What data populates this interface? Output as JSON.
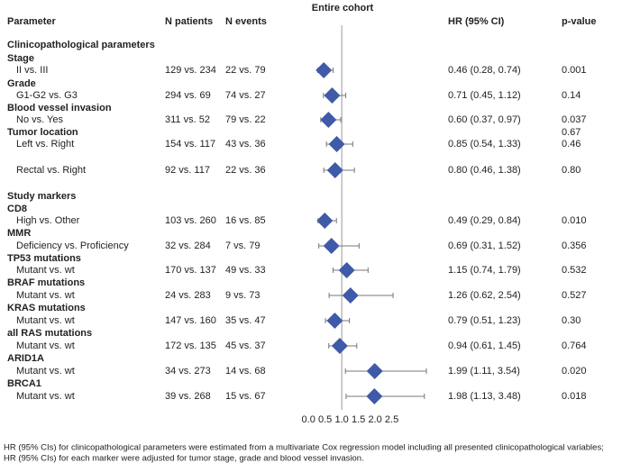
{
  "chart_data": {
    "type": "forest",
    "title": "Entire cohort",
    "columns": {
      "parameter": "Parameter",
      "n_patients": "N patients",
      "n_events": "N events",
      "hr": "HR (95% CI)",
      "p": "p-value"
    },
    "color": "#3f5aa8",
    "whisker_color": "#777777",
    "reference": 1,
    "xlim": [
      -0.6,
      4.0
    ],
    "xticks": [
      {
        "value": 0,
        "label": "0.0"
      },
      0.5,
      {
        "value": 1,
        "label": "1.0"
      },
      1.5,
      {
        "value": 2,
        "label": "2.0"
      },
      2.5
    ],
    "rows": [
      {
        "level": "section",
        "label": "Clinicopathological parameters"
      },
      {
        "level": "group",
        "label": "Stage"
      },
      {
        "level": "item",
        "label": "II vs. III",
        "n_patients": "129 vs. 234",
        "n_events": "22 vs.  79",
        "hr": 0.46,
        "lo": 0.28,
        "hi": 0.74,
        "hr_label": "0.46 (0.28, 0.74)",
        "p": "0.001"
      },
      {
        "level": "group",
        "label": "Grade"
      },
      {
        "level": "item",
        "label": "G1-G2 vs. G3",
        "n_patients": "294 vs.  69",
        "n_events": "74 vs.  27",
        "hr": 0.71,
        "lo": 0.45,
        "hi": 1.12,
        "hr_label": "0.71 (0.45, 1.12)",
        "p": "0.14"
      },
      {
        "level": "group",
        "label": "Blood vessel invasion"
      },
      {
        "level": "item",
        "label": "No vs. Yes",
        "n_patients": "311 vs.  52",
        "n_events": "79 vs.  22",
        "hr": 0.6,
        "lo": 0.37,
        "hi": 0.97,
        "hr_label": "0.60 (0.37, 0.97)",
        "p": "0.037"
      },
      {
        "level": "group",
        "label": "Tumor location",
        "p": "0.67"
      },
      {
        "level": "item",
        "label": "Left vs. Right",
        "n_patients": "154 vs. 117",
        "n_events": "43 vs.  36",
        "hr": 0.85,
        "lo": 0.54,
        "hi": 1.33,
        "hr_label": "0.85 (0.54, 1.33)",
        "p": "0.46"
      },
      {
        "level": "item",
        "label": "Rectal vs. Right",
        "n_patients": "92 vs. 117",
        "n_events": "22 vs.  36",
        "hr": 0.8,
        "lo": 0.46,
        "hi": 1.38,
        "hr_label": "0.80 (0.46, 1.38)",
        "p": "0.80"
      },
      {
        "level": "section",
        "label": "Study markers"
      },
      {
        "level": "group",
        "label": "CD8"
      },
      {
        "level": "item",
        "label": "High vs. Other",
        "n_patients": "103 vs. 260",
        "n_events": "16 vs.  85",
        "hr": 0.49,
        "lo": 0.29,
        "hi": 0.84,
        "hr_label": "0.49 (0.29, 0.84)",
        "p": "0.010"
      },
      {
        "level": "group",
        "label": "MMR"
      },
      {
        "level": "item",
        "label": "Deficiency vs. Proficiency",
        "n_patients": "32 vs. 284",
        "n_events": "7 vs.  79",
        "hr": 0.69,
        "lo": 0.31,
        "hi": 1.52,
        "hr_label": "0.69 (0.31, 1.52)",
        "p": "0.356"
      },
      {
        "level": "group",
        "label": "TP53 mutations"
      },
      {
        "level": "item",
        "label": "Mutant vs. wt",
        "n_patients": "170 vs. 137",
        "n_events": "49 vs.  33",
        "hr": 1.15,
        "lo": 0.74,
        "hi": 1.79,
        "hr_label": "1.15 (0.74, 1.79)",
        "p": "0.532"
      },
      {
        "level": "group",
        "label": "BRAF mutations"
      },
      {
        "level": "item",
        "label": "Mutant vs. wt",
        "n_patients": "24 vs. 283",
        "n_events": "9 vs.  73",
        "hr": 1.26,
        "lo": 0.62,
        "hi": 2.54,
        "hr_label": "1.26 (0.62, 2.54)",
        "p": "0.527"
      },
      {
        "level": "group",
        "label": "KRAS mutations"
      },
      {
        "level": "item",
        "label": "Mutant vs. wt",
        "n_patients": "147 vs. 160",
        "n_events": "35 vs.  47",
        "hr": 0.79,
        "lo": 0.51,
        "hi": 1.23,
        "hr_label": "0.79 (0.51, 1.23)",
        "p": "0.30"
      },
      {
        "level": "group",
        "label": "all RAS mutations"
      },
      {
        "level": "item",
        "label": "Mutant vs. wt",
        "n_patients": "172 vs. 135",
        "n_events": "45 vs.  37",
        "hr": 0.94,
        "lo": 0.61,
        "hi": 1.45,
        "hr_label": "0.94 (0.61, 1.45)",
        "p": "0.764"
      },
      {
        "level": "group",
        "label": "ARID1A"
      },
      {
        "level": "item",
        "label": "Mutant vs. wt",
        "n_patients": "34 vs. 273",
        "n_events": "14 vs.  68",
        "hr": 1.99,
        "lo": 1.11,
        "hi": 3.54,
        "hr_label": "1.99 (1.11, 3.54)",
        "p": "0.020"
      },
      {
        "level": "group",
        "label": "BRCA1"
      },
      {
        "level": "item",
        "label": "Mutant vs. wt",
        "n_patients": "39 vs. 268",
        "n_events": "15 vs.  67",
        "hr": 1.98,
        "lo": 1.13,
        "hi": 3.48,
        "hr_label": "1.98 (1.13, 3.48)",
        "p": "0.018"
      }
    ],
    "footnote": [
      "HR (95% CIs) for clinicopathological parameters were estimated from a multivariate Cox regression model including all presented clinicopathological variables;",
      "HR (95% CIs) for each marker were adjusted for tumor stage, grade and blood vessel invasion."
    ]
  }
}
